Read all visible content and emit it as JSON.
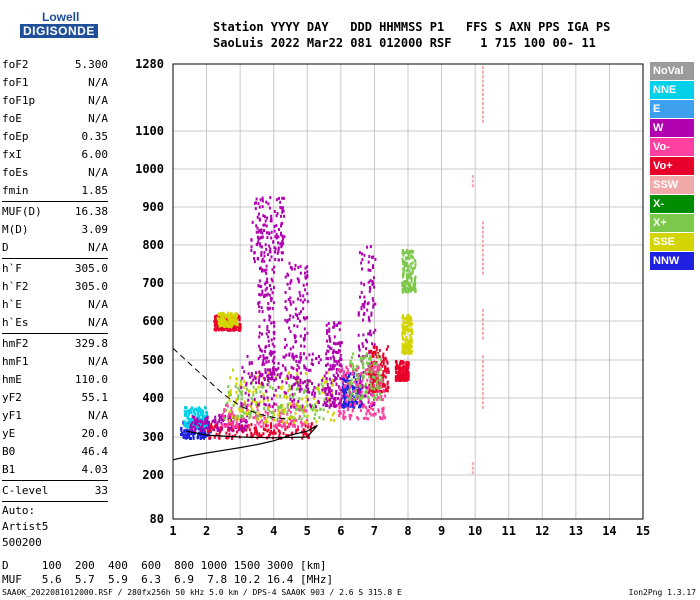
{
  "logo": {
    "line1": "Lowell",
    "line2": "DIGISONDE"
  },
  "header": {
    "line1": "Station YYYY DAY   DDD HHMMSS P1   FFS S AXN PPS IGA PS",
    "line2": "SaoLuis 2022 Mar22 081 012000 RSF    1 715 100 00- 11"
  },
  "params": {
    "group1": [
      {
        "k": "foF2",
        "v": "5.300"
      },
      {
        "k": "foF1",
        "v": "N/A"
      },
      {
        "k": "foF1p",
        "v": "N/A"
      },
      {
        "k": "foE",
        "v": "N/A"
      },
      {
        "k": "foEp",
        "v": "0.35"
      },
      {
        "k": "fxI",
        "v": "6.00"
      },
      {
        "k": "foEs",
        "v": "N/A"
      },
      {
        "k": "fmin",
        "v": "1.85"
      }
    ],
    "group2": [
      {
        "k": "MUF(D)",
        "v": "16.38"
      },
      {
        "k": "M(D)",
        "v": "3.09"
      },
      {
        "k": "D",
        "v": "N/A"
      }
    ],
    "group3": [
      {
        "k": "h`F",
        "v": "305.0"
      },
      {
        "k": "h`F2",
        "v": "305.0"
      },
      {
        "k": "h`E",
        "v": "N/A"
      },
      {
        "k": "h`Es",
        "v": "N/A"
      }
    ],
    "group4": [
      {
        "k": "hmF2",
        "v": "329.8"
      },
      {
        "k": "hmF1",
        "v": "N/A"
      },
      {
        "k": "hmE",
        "v": "110.0"
      },
      {
        "k": "yF2",
        "v": "55.1"
      },
      {
        "k": "yF1",
        "v": "N/A"
      },
      {
        "k": "yE",
        "v": "20.0"
      },
      {
        "k": "B0",
        "v": "46.4"
      },
      {
        "k": "B1",
        "v": "4.03"
      }
    ],
    "group5": [
      {
        "k": "C-level",
        "v": "33"
      }
    ],
    "auto": [
      "Auto:",
      "Artist5",
      "500200"
    ]
  },
  "legend": [
    {
      "label": "NoVal",
      "color": "#9b9b9b"
    },
    {
      "label": "NNE",
      "color": "#00d0e8"
    },
    {
      "label": "E",
      "color": "#3ca0ee"
    },
    {
      "label": "W",
      "color": "#b000b0"
    },
    {
      "label": "Vo-",
      "color": "#ff40a0"
    },
    {
      "label": "Vo+",
      "color": "#e8002a"
    },
    {
      "label": "SSW",
      "color": "#f0a8a8"
    },
    {
      "label": "X-",
      "color": "#008c00"
    },
    {
      "label": "X+",
      "color": "#7cc84a"
    },
    {
      "label": "SSE",
      "color": "#d4d400"
    },
    {
      "label": "NNW",
      "color": "#2020e0"
    }
  ],
  "muf": {
    "line1": "D     100  200  400  600  800 1000 1500 3000 [km]",
    "line2": "MUF   5.6  5.7  5.9  6.3  6.9  7.8 10.2 16.4 [MHz]"
  },
  "footer": {
    "left": "SAA0K_2022081012000.RSF / 280fx256h 50 kHz 5.0 km / DPS-4 SAA0K 903 / 2.6 S 315.8 E",
    "right": "Ion2Png 1.3.17"
  },
  "chart_data": {
    "type": "scatter",
    "title": "",
    "xlabel": "",
    "ylabel": "",
    "x_ticks": [
      1,
      2,
      3,
      4,
      5,
      6,
      7,
      8,
      9,
      10,
      11,
      12,
      13,
      14,
      15
    ],
    "y_ticks": [
      80,
      200,
      300,
      400,
      500,
      600,
      700,
      800,
      900,
      1000,
      1100,
      1280
    ],
    "xlim": [
      1,
      15
    ],
    "ylim": [
      80,
      1280
    ],
    "grid": true,
    "legend_position": "right",
    "clusters": [
      {
        "x": [
          1.2,
          2.1
        ],
        "y": [
          300,
          345
        ],
        "color": "#2020e0"
      },
      {
        "x": [
          1.3,
          2.0
        ],
        "y": [
          330,
          380
        ],
        "color": "#00d0e8"
      },
      {
        "x": [
          1.5,
          3.2
        ],
        "y": [
          320,
          360
        ],
        "color": "#b000b0"
      },
      {
        "x": [
          2.0,
          5.2
        ],
        "y": [
          300,
          340
        ],
        "color": "#e8002a"
      },
      {
        "x": [
          2.4,
          5.0
        ],
        "y": [
          330,
          390
        ],
        "color": "#ff40a0"
      },
      {
        "x": [
          2.5,
          5.5
        ],
        "y": [
          350,
          450
        ],
        "color": "#7cc84a"
      },
      {
        "x": [
          2.6,
          5.8
        ],
        "y": [
          340,
          480
        ],
        "color": "#d4d400"
      },
      {
        "x": [
          3.0,
          5.8
        ],
        "y": [
          380,
          520
        ],
        "color": "#b000b0"
      },
      {
        "x": [
          3.5,
          4.0
        ],
        "y": [
          450,
          750
        ],
        "color": "#b000b0"
      },
      {
        "x": [
          4.3,
          5.0
        ],
        "y": [
          420,
          760
        ],
        "color": "#b000b0"
      },
      {
        "x": [
          2.2,
          3.0
        ],
        "y": [
          580,
          620
        ],
        "color": "#e8002a"
      },
      {
        "x": [
          2.3,
          2.9
        ],
        "y": [
          590,
          625
        ],
        "color": "#d4d400"
      },
      {
        "x": [
          5.5,
          6.0
        ],
        "y": [
          380,
          600
        ],
        "color": "#b000b0"
      },
      {
        "x": [
          6.0,
          6.6
        ],
        "y": [
          380,
          470
        ],
        "color": "#2020e0"
      },
      {
        "x": [
          6.5,
          7.0
        ],
        "y": [
          380,
          800
        ],
        "color": "#b000b0"
      },
      {
        "x": [
          6.8,
          7.4
        ],
        "y": [
          420,
          540
        ],
        "color": "#e8002a"
      },
      {
        "x": [
          6.2,
          7.2
        ],
        "y": [
          400,
          520
        ],
        "color": "#7cc84a"
      },
      {
        "x": [
          7.6,
          8.0
        ],
        "y": [
          450,
          500
        ],
        "color": "#e8002a"
      },
      {
        "x": [
          7.8,
          8.1
        ],
        "y": [
          520,
          620
        ],
        "color": "#d4d400"
      },
      {
        "x": [
          7.8,
          8.2
        ],
        "y": [
          680,
          790
        ],
        "color": "#7cc84a"
      },
      {
        "x": [
          3.3,
          4.3
        ],
        "y": [
          760,
          930
        ],
        "color": "#b000b0"
      },
      {
        "x": [
          5.9,
          7.3
        ],
        "y": [
          350,
          490
        ],
        "color": "#ff40a0"
      }
    ],
    "ssw_columns": [
      {
        "x": 10.2,
        "y": [
          1130,
          1280
        ]
      },
      {
        "x": 10.2,
        "y": [
          730,
          870
        ]
      },
      {
        "x": 10.2,
        "y": [
          560,
          640
        ]
      },
      {
        "x": 10.2,
        "y": [
          380,
          520
        ]
      },
      {
        "x": 9.9,
        "y": [
          960,
          990
        ]
      },
      {
        "x": 9.9,
        "y": [
          210,
          235
        ]
      }
    ],
    "o_trace_dashed": {
      "x": [
        1.0,
        1.5,
        2.0,
        2.5,
        3.0,
        3.5,
        4.0,
        4.5
      ],
      "y": [
        530,
        490,
        450,
        410,
        380,
        360,
        350,
        345
      ]
    },
    "x_trace_solid": {
      "x": [
        1.0,
        1.5,
        2.0,
        2.5,
        3.0,
        3.5,
        4.0,
        4.5,
        5.0,
        5.3
      ],
      "y": [
        240,
        250,
        258,
        265,
        272,
        280,
        290,
        305,
        315,
        330
      ]
    },
    "trace_bottom": {
      "x": [
        1.4,
        2.0,
        3.0,
        4.0,
        5.0,
        5.3
      ],
      "y": [
        315,
        305,
        300,
        298,
        300,
        330
      ]
    }
  }
}
